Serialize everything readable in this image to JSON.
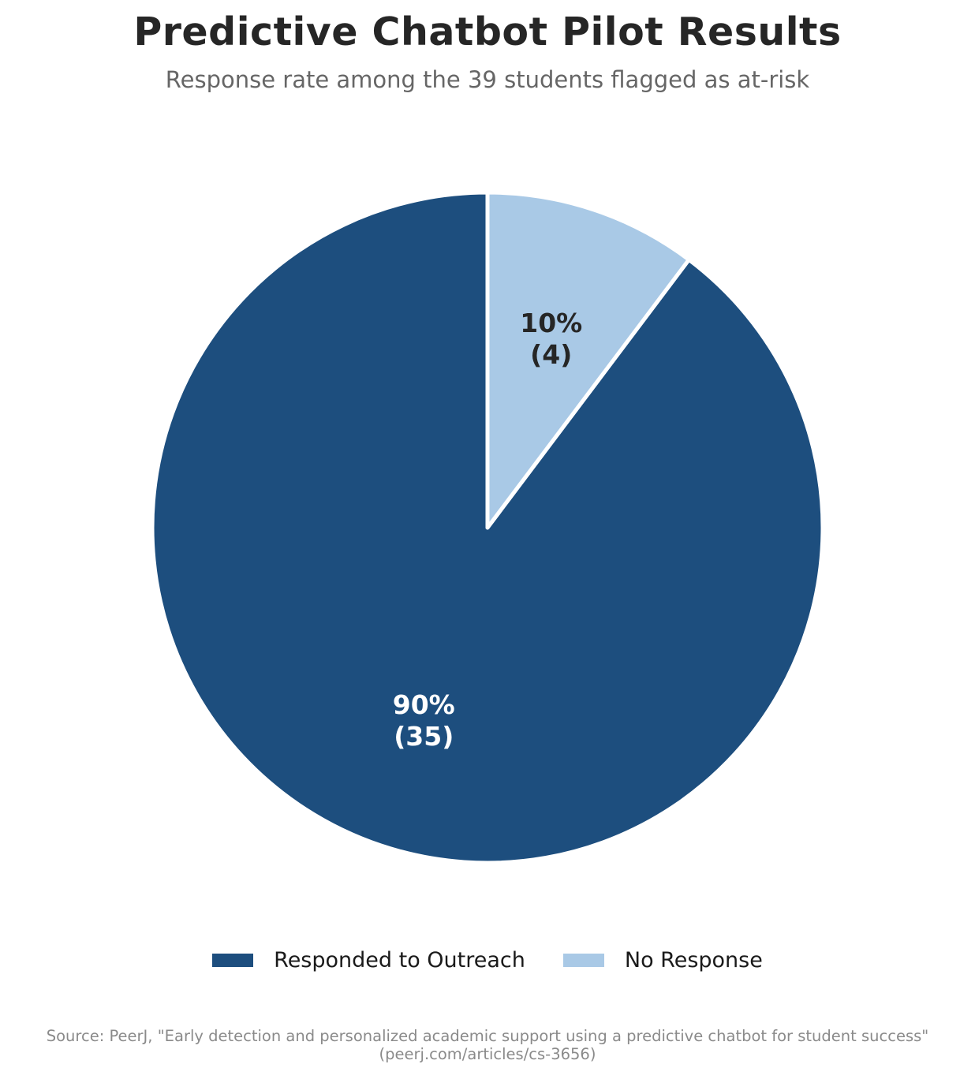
{
  "chart_data": {
    "type": "pie",
    "title": "Predictive Chatbot Pilot Results",
    "subtitle": "Response rate among the 39 students flagged as at-risk",
    "slices": [
      {
        "label": "Responded to Outreach",
        "value": 35,
        "percent_label": "90%",
        "count_label": "(35)",
        "color": "#1d4e7e",
        "text_color": "#ffffff"
      },
      {
        "label": "No Response",
        "value": 4,
        "percent_label": "10%",
        "count_label": "(4)",
        "color": "#a9c9e6",
        "text_color": "#262626"
      }
    ],
    "start": "top",
    "direction": "counterclockwise",
    "legend_position": "bottom"
  },
  "source": {
    "line1": "Source: PeerJ, \"Early detection and personalized academic support using a predictive chatbot for student success\"",
    "line2": "(peerj.com/articles/cs-3656)"
  }
}
